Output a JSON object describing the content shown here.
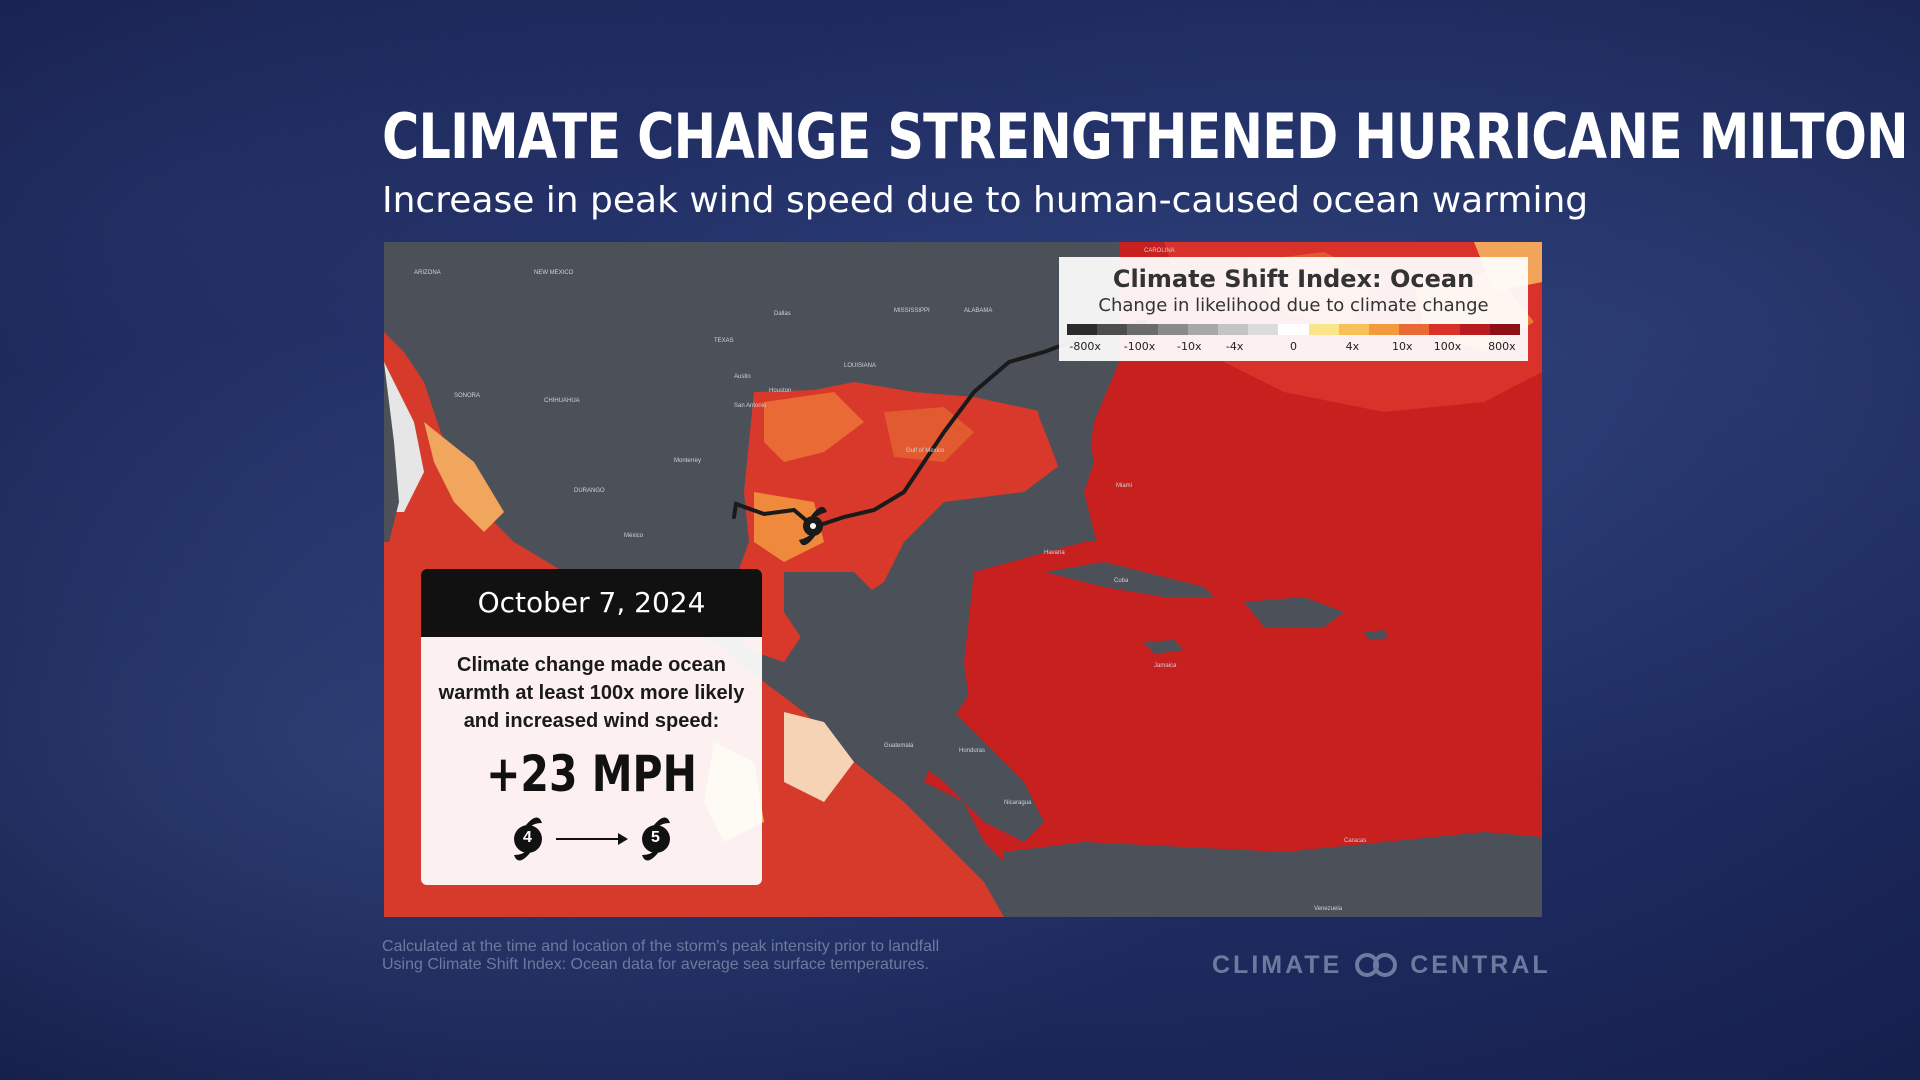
{
  "title": "CLIMATE CHANGE STRENGTHENED HURRICANE MILTON",
  "subtitle": "Increase in peak wind speed due to human-caused ocean warming",
  "legend": {
    "title": "Climate Shift Index: Ocean",
    "subtitle": "Change in likelihood due to climate change",
    "ticks": [
      "-800x",
      "-100x",
      "-10x",
      "-4x",
      "0",
      "4x",
      "10x",
      "100x",
      "800x"
    ],
    "colors": [
      "#2b2b2b",
      "#4d4d4d",
      "#6b6b6b",
      "#8a8a8a",
      "#a8a8a8",
      "#c4c4c4",
      "#dcdcdc",
      "#ffffff",
      "#fbe58a",
      "#f8c057",
      "#f39a3e",
      "#ea6a35",
      "#d9322b",
      "#b81c20",
      "#8f1014"
    ]
  },
  "card": {
    "date": "October 7, 2024",
    "text": "Climate change made ocean warmth at least 100x more likely and increased wind speed:",
    "speed": "+23 MPH",
    "from_category": "4",
    "to_category": "5"
  },
  "map": {
    "labels": {
      "gulf": "Gulf of Mexico",
      "cuba": "Cuba",
      "mexico": "México",
      "venezuela": "Venezuela",
      "houston": "Houston",
      "dallas": "Dallas",
      "san_antonio": "San Antonio",
      "austin": "Austin",
      "monterrey": "Monterrey",
      "havana": "Havana",
      "miami": "Miami",
      "guatemala": "Guatemala",
      "honduras": "Honduras",
      "nicaragua": "Nicaragua",
      "jamaica": "Jamaica",
      "caracas": "Caracas",
      "new_mexico": "NEW MEXICO",
      "texas": "TEXAS",
      "louisiana": "LOUISIANA",
      "alabama": "ALABAMA",
      "mississippi": "MISSISSIPPI",
      "arizona": "ARIZONA",
      "chihuahua": "CHIHUAHUA",
      "sonora": "SONORA",
      "durango": "DURANGO",
      "carolina": "CAROLINA"
    },
    "colors": {
      "land": "#4b5059",
      "deep_red": "#c8201f",
      "red": "#d63a2a",
      "orange_red": "#e2582f",
      "orange": "#ef8a3c",
      "light": "#f7d3b6",
      "track": "#1a1a1a"
    }
  },
  "footnote": {
    "line1": "Calculated at the time and location of the storm's peak intensity prior to landfall",
    "line2": "Using Climate Shift Index: Ocean data for average sea surface temperatures."
  },
  "logo": {
    "left": "CLIMATE",
    "right": "CENTRAL"
  }
}
